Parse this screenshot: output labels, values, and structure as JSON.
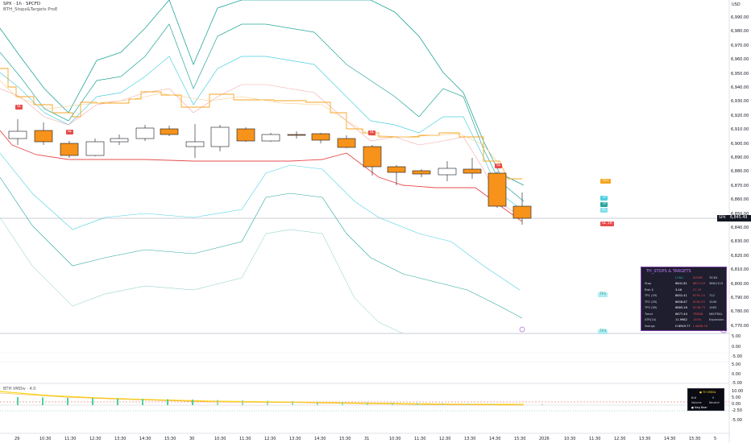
{
  "header": {
    "symbol_line": "SPX · 1h · SPCFD",
    "indicator_line": "BTH_Stops&Targets ProE",
    "currency": "USD"
  },
  "price_axis": {
    "labels": [
      "6,990.00",
      "6,980.00",
      "6,970.00",
      "6,960.00",
      "6,950.00",
      "6,940.00",
      "6,930.00",
      "6,920.00",
      "6,910.00",
      "6,900.00",
      "6,890.00",
      "6,880.00",
      "6,870.00",
      "6,860.00",
      "6,850.00",
      "6,840.00",
      "6,830.00",
      "6,820.00",
      "6,810.00",
      "6,800.00",
      "6,790.00",
      "6,780.00",
      "6,770.00"
    ],
    "current_symbol": "SPX",
    "current_price": "6,845.49"
  },
  "lower_axis": {
    "pane1": [
      "5.00",
      "0.00",
      "-5.00"
    ],
    "pane2": [
      "5.00",
      "0.00",
      "-5.00"
    ],
    "pane3": [
      "10.00",
      "5.00",
      "0.00",
      "-2.50",
      "-5.00"
    ]
  },
  "time_axis": {
    "labels": [
      "29",
      "10:30",
      "11:30",
      "12:30",
      "13:30",
      "14:30",
      "15:30",
      "30",
      "10:30",
      "11:30",
      "12:30",
      "13:30",
      "14:30",
      "15:30",
      "31",
      "10:30",
      "11:30",
      "12:30",
      "13:30",
      "14:30",
      "15:30",
      "2026",
      "10:30",
      "11:30",
      "12:30",
      "13:30",
      "14:30",
      "15:30",
      "5"
    ]
  },
  "price_tags": {
    "tag1": "TGT",
    "tag2": "TP",
    "tag3": "TP",
    "tag4": "SL",
    "tag5": "SL 1R",
    "tag6": "TP1",
    "tag7": "TP3",
    "sl_marker_1": "SL",
    "sl_marker_2": "SL",
    "sl_marker_3": "SL"
  },
  "vmdiv": {
    "label": "BTH VMDiv · 4.0"
  },
  "stats_panel": {
    "title": "TH_STOPS & TARGETS",
    "col_long": "LONG",
    "col_short": "SHORT",
    "col_ticks": "TICKS",
    "rows": [
      {
        "label": "Stop",
        "long": "6841.81",
        "short": "6871.49",
        "ticks": "366/1119"
      },
      {
        "label": "Risk $",
        "long": "3.46",
        "short": "27.19",
        "ticks": ""
      },
      {
        "label": "TP1 (1R)",
        "long": "6852.41",
        "short": "6791.15",
        "ticks": "712"
      },
      {
        "label": "TP2 (2R)",
        "long": "6858.87",
        "short": "6762.93",
        "ticks": "1049"
      },
      {
        "label": "TP3 (3R)",
        "long": "6865.28",
        "short": "6736.73",
        "ticks": "1063"
      },
      {
        "label": "Trend",
        "long": "6877.44",
        "short": "TREND",
        "ticks": "NEUTRAL"
      },
      {
        "label": "ATR(14)",
        "long": "11.9982",
        "short": "135%",
        "ticks": "Expansion"
      },
      {
        "label": "Swings",
        "long": "H 6949.77",
        "short": "L 6806.76",
        "ticks": ""
      }
    ]
  },
  "mini_panel": {
    "title": "● TH VMDiv",
    "row1_a": "Bull",
    "row1_b": "0",
    "row2_a": "Volume",
    "row2_b": "Neutral",
    "row3": "● Neg Bear"
  },
  "colors": {
    "up_candle": "#ffffff",
    "down_candle": "#f7931a",
    "stop_line": "#e84c4c",
    "target_line": "#f5a623",
    "band_teal": "#26a69a",
    "band_cyan": "#4dd0e1",
    "panel_bg": "#1e1e2f"
  }
}
